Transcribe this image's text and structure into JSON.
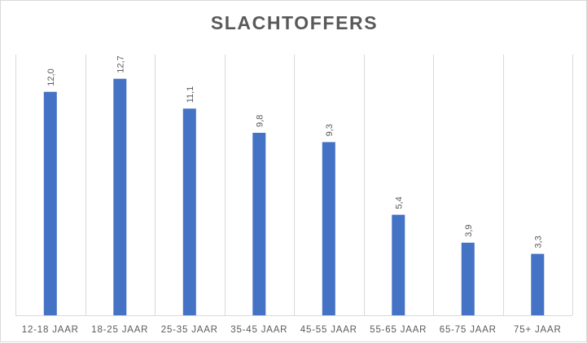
{
  "chart_data": {
    "type": "bar",
    "title": "SLACHTOFFERS",
    "categories": [
      "12-18 JAAR",
      "18-25 JAAR",
      "25-35 JAAR",
      "35-45 JAAR",
      "45-55 JAAR",
      "55-65 JAAR",
      "65-75 JAAR",
      "75+ JAAR"
    ],
    "values": [
      12.0,
      12.7,
      11.1,
      9.8,
      9.3,
      5.4,
      3.9,
      3.3
    ],
    "data_labels": [
      "12,0",
      "12,7",
      "11,1",
      "9,8",
      "9,3",
      "5,4",
      "3,9",
      "3,3"
    ],
    "xlabel": "",
    "ylabel": "",
    "ylim": [
      0,
      14
    ],
    "y_axis_visible": false,
    "grid": "vertical",
    "legend": "none",
    "bar_color": "#4472c4",
    "gridline_color": "#d9d9d9",
    "text_color": "#595959"
  }
}
